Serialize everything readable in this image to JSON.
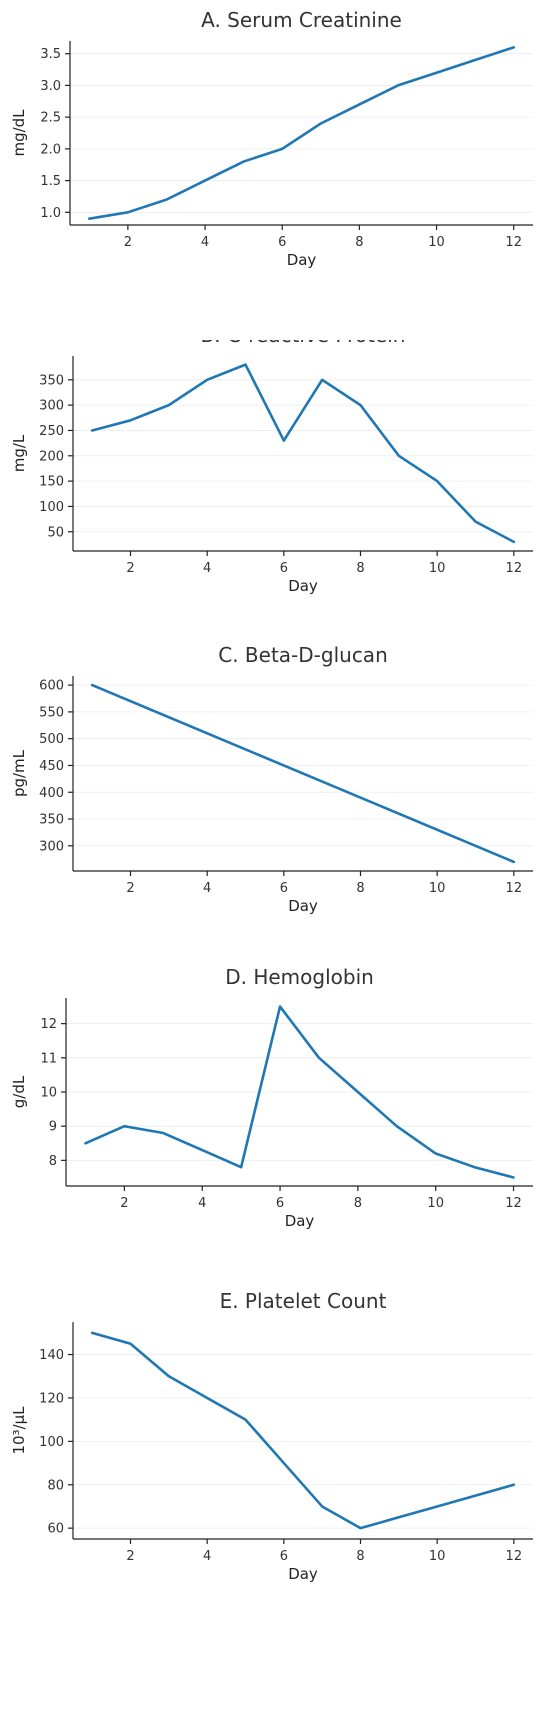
{
  "chart_data": [
    {
      "type": "line",
      "title": "A. Serum Creatinine",
      "xlabel": "Day",
      "ylabel": "mg/dL",
      "grid": true,
      "xlim": [
        0.5,
        12.5
      ],
      "ylim": [
        0.8,
        3.7
      ],
      "xticks": [
        2,
        4,
        6,
        8,
        10,
        12
      ],
      "yticks": [
        1.0,
        1.5,
        2.0,
        2.5,
        3.0,
        3.5
      ],
      "ytick_labels": [
        "1.0",
        "1.5",
        "2.0",
        "2.5",
        "3.0",
        "3.5"
      ],
      "series": [
        {
          "color": "#1f77b4",
          "x": [
            1,
            2,
            3,
            4,
            5,
            6,
            7,
            8,
            9,
            10,
            11,
            12
          ],
          "y": [
            0.9,
            1.0,
            1.2,
            1.5,
            1.8,
            2.0,
            2.4,
            2.7,
            3.0,
            3.2,
            3.4,
            3.6
          ]
        }
      ]
    },
    {
      "type": "line",
      "title": "B. C-reactive Protein",
      "xlabel": "Day",
      "ylabel": "mg/L",
      "grid": true,
      "xlim": [
        0.5,
        12.5
      ],
      "ylim": [
        12,
        397
      ],
      "xticks": [
        2,
        4,
        6,
        8,
        10,
        12
      ],
      "yticks": [
        50,
        100,
        150,
        200,
        250,
        300,
        350
      ],
      "ytick_labels": [
        "50",
        "100",
        "150",
        "200",
        "250",
        "300",
        "350"
      ],
      "series": [
        {
          "color": "#1f77b4",
          "x": [
            1,
            2,
            3,
            4,
            5,
            6,
            7,
            8,
            9,
            10,
            11,
            12
          ],
          "y": [
            250,
            270,
            300,
            350,
            380,
            230,
            350,
            300,
            200,
            150,
            70,
            30
          ]
        }
      ]
    },
    {
      "type": "line",
      "title": "C. Beta-D-glucan",
      "xlabel": "Day",
      "ylabel": "pg/mL",
      "grid": true,
      "xlim": [
        0.5,
        12.5
      ],
      "ylim": [
        253,
        617
      ],
      "xticks": [
        2,
        4,
        6,
        8,
        10,
        12
      ],
      "yticks": [
        300,
        350,
        400,
        450,
        500,
        550,
        600
      ],
      "ytick_labels": [
        "300",
        "350",
        "400",
        "450",
        "500",
        "550",
        "600"
      ],
      "series": [
        {
          "color": "#1f77b4",
          "x": [
            1,
            12
          ],
          "y": [
            600,
            270
          ]
        }
      ]
    },
    {
      "type": "line",
      "title": "D. Hemoglobin",
      "xlabel": "Day",
      "ylabel": "g/dL",
      "grid": true,
      "xlim": [
        0.5,
        12.5
      ],
      "ylim": [
        7.25,
        12.75
      ],
      "xticks": [
        2,
        4,
        6,
        8,
        10,
        12
      ],
      "yticks": [
        8,
        9,
        10,
        11,
        12
      ],
      "ytick_labels": [
        "8",
        "9",
        "10",
        "11",
        "12"
      ],
      "series": [
        {
          "color": "#1f77b4",
          "x": [
            1,
            2,
            3,
            4,
            5,
            6,
            7,
            8,
            9,
            10,
            11,
            12
          ],
          "y": [
            8.5,
            9.0,
            8.8,
            8.3,
            7.8,
            12.5,
            11.0,
            10.0,
            9.0,
            8.2,
            7.8,
            7.5
          ]
        }
      ]
    },
    {
      "type": "line",
      "title": "E. Platelet Count",
      "xlabel": "Day",
      "ylabel": "10³/µL",
      "grid": true,
      "xlim": [
        0.5,
        12.5
      ],
      "ylim": [
        55,
        155
      ],
      "xticks": [
        2,
        4,
        6,
        8,
        10,
        12
      ],
      "yticks": [
        60,
        80,
        100,
        120,
        140
      ],
      "ytick_labels": [
        "60",
        "80",
        "100",
        "120",
        "140"
      ],
      "series": [
        {
          "color": "#1f77b4",
          "x": [
            1,
            2,
            3,
            4,
            5,
            6,
            7,
            8,
            9,
            10,
            11,
            12
          ],
          "y": [
            150,
            145,
            130,
            120,
            110,
            90,
            70,
            60,
            65,
            70,
            75,
            80
          ]
        }
      ]
    }
  ]
}
